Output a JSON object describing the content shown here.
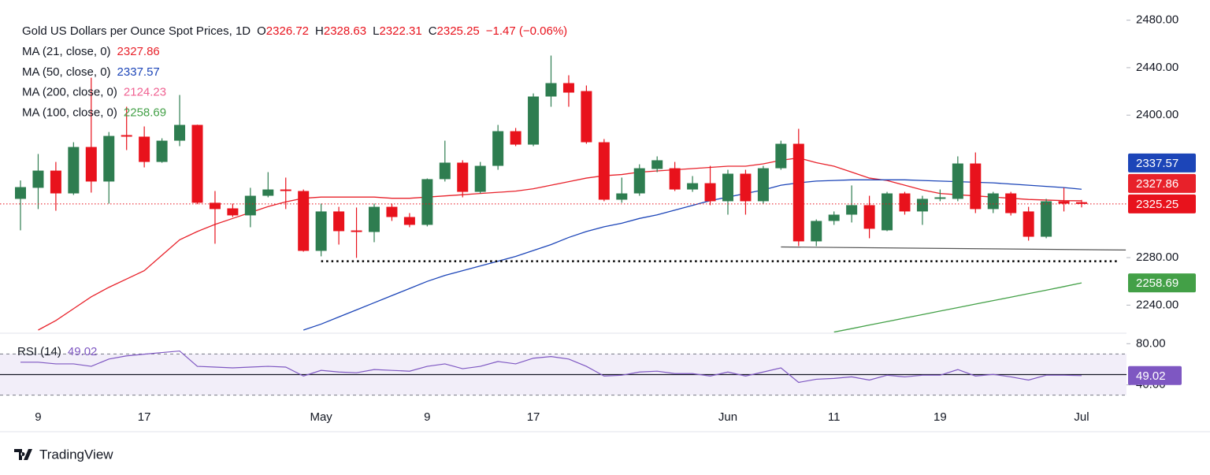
{
  "chart_data": {
    "type": "candlestick",
    "title": "Gold US Dollars per Ounce Spot Prices, 1D",
    "ohlc_keys": [
      "O",
      "H",
      "L",
      "C"
    ],
    "change": "−1.47 (−0.06%)",
    "up_color": "#2e7d50",
    "down_color": "#e8121c",
    "categories": [
      null,
      "9",
      null,
      null,
      null,
      null,
      null,
      "17",
      null,
      null,
      null,
      null,
      null,
      null,
      null,
      null,
      null,
      "May",
      null,
      null,
      null,
      null,
      null,
      "9",
      null,
      null,
      null,
      null,
      null,
      "17",
      null,
      null,
      null,
      null,
      null,
      null,
      null,
      null,
      null,
      null,
      "Jun",
      null,
      null,
      null,
      null,
      null,
      "11",
      null,
      null,
      null,
      null,
      null,
      "19",
      null,
      null,
      null,
      null,
      null,
      null,
      null,
      "Jul"
    ],
    "open": [
      2329.5,
      2338.8,
      2353.3,
      2334.1,
      2373.2,
      2344.1,
      2383.2,
      2381.9,
      2360.6,
      2378.5,
      2391.8,
      2326.2,
      2321.5,
      2315.6,
      2332.1,
      2337.4,
      2336.1,
      2285.7,
      2318.9,
      2302.9,
      2301.6,
      2322.8,
      2314.2,
      2307.6,
      2346.1,
      2360.0,
      2335.4,
      2357.3,
      2386.5,
      2375.2,
      2415.7,
      2427.0,
      2420.3,
      2377.2,
      2328.8,
      2334.1,
      2354.7,
      2355.3,
      2337.4,
      2342.7,
      2327.5,
      2350.7,
      2327.5,
      2355.3,
      2375.9,
      2293.7,
      2310.9,
      2316.2,
      2324.2,
      2303.0,
      2334.1,
      2318.9,
      2329.5,
      2329.5,
      2359.3,
      2320.9,
      2334.1,
      2318.9,
      2297.6,
      2327.5,
      2326.72
    ],
    "high": [
      2345.0,
      2367.3,
      2360.6,
      2377.2,
      2431.6,
      2385.8,
      2407.1,
      2390.5,
      2380.5,
      2417.0,
      2392.0,
      2336.1,
      2325.5,
      2338.8,
      2352.0,
      2347.4,
      2337.4,
      2325.5,
      2322.8,
      2322.2,
      2325.5,
      2325.5,
      2317.5,
      2346.7,
      2378.5,
      2362.0,
      2360.6,
      2391.8,
      2389.2,
      2418.3,
      2450.2,
      2433.6,
      2425.0,
      2379.9,
      2347.4,
      2358.6,
      2365.3,
      2360.6,
      2348.7,
      2357.3,
      2354.0,
      2354.0,
      2357.3,
      2378.5,
      2388.5,
      2312.2,
      2318.9,
      2340.8,
      2332.1,
      2335.4,
      2335.4,
      2332.1,
      2337.4,
      2365.3,
      2368.6,
      2335.4,
      2335.4,
      2322.8,
      2329.5,
      2338.8,
      2328.63
    ],
    "low": [
      2303.0,
      2320.9,
      2319.5,
      2332.8,
      2334.8,
      2325.5,
      2370.6,
      2356.0,
      2359.9,
      2373.9,
      2325.0,
      2291.7,
      2314.2,
      2305.6,
      2330.8,
      2320.9,
      2285.0,
      2281.1,
      2291.0,
      2279.8,
      2293.0,
      2310.9,
      2305.6,
      2306.3,
      2344.1,
      2330.8,
      2334.1,
      2354.0,
      2373.9,
      2373.9,
      2407.1,
      2407.1,
      2375.9,
      2327.5,
      2326.2,
      2332.1,
      2352.0,
      2336.1,
      2335.4,
      2324.2,
      2316.2,
      2316.2,
      2325.5,
      2354.0,
      2289.7,
      2289.7,
      2307.6,
      2309.6,
      2296.3,
      2302.3,
      2316.2,
      2307.6,
      2327.5,
      2327.5,
      2317.5,
      2317.5,
      2315.5,
      2294.3,
      2296.3,
      2318.9,
      2322.31
    ],
    "close": [
      2339.4,
      2353.3,
      2334.1,
      2373.2,
      2344.1,
      2382.5,
      2381.9,
      2360.6,
      2378.5,
      2391.8,
      2326.2,
      2320.9,
      2315.6,
      2332.1,
      2337.4,
      2336.1,
      2285.7,
      2318.9,
      2302.3,
      2301.6,
      2322.8,
      2314.2,
      2307.6,
      2346.1,
      2360.0,
      2335.4,
      2357.3,
      2386.5,
      2375.2,
      2415.7,
      2427.0,
      2419.0,
      2377.2,
      2328.8,
      2334.1,
      2355.3,
      2362.0,
      2337.4,
      2342.7,
      2327.5,
      2350.7,
      2327.5,
      2355.3,
      2375.9,
      2293.7,
      2310.9,
      2316.2,
      2324.2,
      2304.3,
      2334.1,
      2318.9,
      2329.5,
      2330.8,
      2359.3,
      2320.9,
      2334.1,
      2317.5,
      2297.6,
      2327.5,
      2325.5,
      2325.25
    ],
    "ylim": [
      2217,
      2497
    ],
    "yticks": [
      {
        "value": 2240,
        "label": "2240.00"
      },
      {
        "value": 2280,
        "label": "2280.00"
      },
      {
        "value": 2400,
        "label": "2400.00"
      },
      {
        "value": 2440,
        "label": "2440.00"
      },
      {
        "value": 2480,
        "label": "2480.00"
      }
    ],
    "moving_averages": [
      {
        "name": "MA (21, close, 0)",
        "color": "#e8212a",
        "value": 2327.86,
        "values": [
          null,
          2219,
          2227,
          2237,
          2247,
          2255,
          2262,
          2269,
          2282,
          2295,
          2302,
          2308,
          2313,
          2318,
          2323,
          2327,
          2330,
          2331,
          2331,
          2331,
          2331,
          2330,
          2330,
          2331,
          2332,
          2333,
          2334,
          2335,
          2336,
          2338,
          2341,
          2344,
          2347,
          2349,
          2350,
          2352,
          2353,
          2354,
          2355,
          2356,
          2357,
          2357,
          2359,
          2362,
          2364,
          2360,
          2357,
          2352,
          2347,
          2345,
          2341,
          2337,
          2334,
          2333,
          2332,
          2331,
          2330,
          2329,
          2328.5,
          2328,
          2327.86
        ]
      },
      {
        "name": "MA (50, close, 0)",
        "color": "#1c45b8",
        "value": 2337.57,
        "values": [
          null,
          null,
          null,
          null,
          null,
          null,
          null,
          null,
          null,
          null,
          null,
          null,
          null,
          null,
          null,
          null,
          2219,
          2224,
          2230,
          2236,
          2242,
          2248,
          2254,
          2260,
          2265,
          2269,
          2273,
          2277,
          2281,
          2286,
          2291,
          2297,
          2302,
          2306,
          2309,
          2313,
          2316,
          2320,
          2324,
          2328,
          2331,
          2334,
          2337,
          2341,
          2343,
          2344.5,
          2345,
          2345.5,
          2345.5,
          2345.5,
          2345.5,
          2345,
          2344.5,
          2344,
          2343.5,
          2343,
          2342,
          2341,
          2340,
          2339,
          2337.57
        ]
      },
      {
        "name": "MA (200, close, 0)",
        "color": "#f06292",
        "value": 2124.23
      },
      {
        "name": "MA (100, close, 0)",
        "color": "#43a047",
        "value": 2258.69,
        "values": [
          null,
          null,
          null,
          null,
          null,
          null,
          null,
          null,
          null,
          null,
          null,
          null,
          null,
          null,
          null,
          null,
          null,
          null,
          null,
          null,
          null,
          null,
          null,
          null,
          null,
          null,
          null,
          null,
          null,
          null,
          null,
          null,
          null,
          null,
          null,
          null,
          null,
          null,
          null,
          null,
          null,
          null,
          null,
          null,
          null,
          null,
          2217.3,
          2220.2,
          2223.2,
          2226.1,
          2229.1,
          2232.0,
          2235.0,
          2237.9,
          2240.9,
          2243.8,
          2246.7,
          2249.7,
          2252.6,
          2255.6,
          2258.69
        ]
      }
    ],
    "lines": [
      {
        "style": "dotted",
        "color": "#000000",
        "x": [
          17,
          62
        ],
        "y": [
          2277,
          2277
        ]
      },
      {
        "style": "solid",
        "color": "#555555",
        "x": [
          43,
          62.5
        ],
        "y": [
          2289,
          2286.4
        ]
      }
    ],
    "rsi": {
      "name": "RSI (14)",
      "color": "#7e57c2",
      "values": [
        62.0,
        62.0,
        60.4,
        60.4,
        58.0,
        65.1,
        68.2,
        69.8,
        71.4,
        72.9,
        58.0,
        57.3,
        56.5,
        57.3,
        58.0,
        57.3,
        48.6,
        54.1,
        52.5,
        51.8,
        54.9,
        54.1,
        53.3,
        58.0,
        60.4,
        55.7,
        58.0,
        62.7,
        60.4,
        65.9,
        67.5,
        65.1,
        58.0,
        48.6,
        49.4,
        52.5,
        53.3,
        51.0,
        51.0,
        48.6,
        52.5,
        48.6,
        52.5,
        56.5,
        42.4,
        45.5,
        46.3,
        47.8,
        44.7,
        49.4,
        47.8,
        49.4,
        49.4,
        54.9,
        48.6,
        50.2,
        47.8,
        44.7,
        49.4,
        49.4,
        49.02
      ],
      "ylim": [
        26.7,
        89.4
      ],
      "yticks": [
        {
          "value": 80,
          "label": "80.00"
        },
        {
          "value": 40,
          "label": "40.00"
        }
      ],
      "band": [
        30,
        70
      ],
      "midline": 50
    }
  },
  "branding": "TradingView"
}
